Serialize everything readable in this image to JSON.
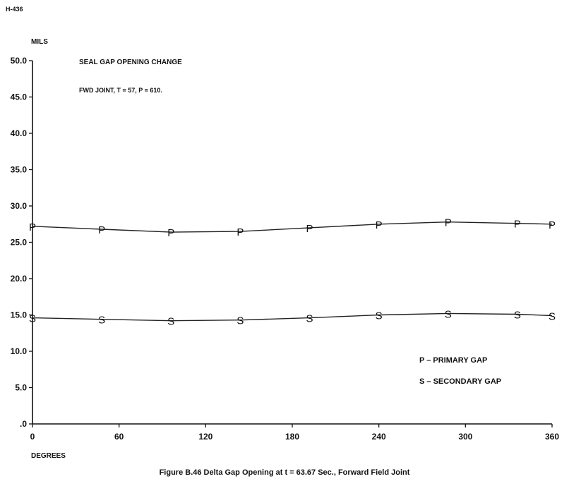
{
  "document_id": "H-436",
  "caption": "Figure B.46  Delta Gap Opening at t  =  63.67 Sec., Forward Field Joint",
  "chart_data": {
    "type": "line",
    "title": "SEAL GAP OPENING CHANGE",
    "subtitle": "FWD JOINT, T = 57, P = 610.",
    "ylabel": "MILS",
    "xlabel": "DEGREES",
    "xlim": [
      0,
      360
    ],
    "ylim": [
      0,
      50
    ],
    "x_ticks": [
      0,
      60,
      120,
      180,
      240,
      300,
      360
    ],
    "x_tick_labels": [
      "0",
      "60",
      "120",
      "180",
      "240",
      "300",
      "360"
    ],
    "y_ticks": [
      0,
      5,
      10,
      15,
      20,
      25,
      30,
      35,
      40,
      45,
      50
    ],
    "y_tick_labels": [
      ".0",
      "5.0",
      "10.0",
      "15.0",
      "20.0",
      "25.0",
      "30.0",
      "35.0",
      "40.0",
      "45.0",
      "50.0"
    ],
    "grid": false,
    "legend": [
      {
        "marker": "P",
        "label": "P – PRIMARY GAP"
      },
      {
        "marker": "S",
        "label": "S – SECONDARY GAP"
      }
    ],
    "series": [
      {
        "marker": "P",
        "x": [
          0,
          48,
          96,
          144,
          192,
          240,
          288,
          336,
          360
        ],
        "y": [
          27.2,
          26.8,
          26.4,
          26.5,
          27.0,
          27.5,
          27.8,
          27.6,
          27.5
        ]
      },
      {
        "marker": "S",
        "x": [
          0,
          48,
          96,
          144,
          192,
          240,
          288,
          336,
          360
        ],
        "y": [
          14.6,
          14.4,
          14.2,
          14.3,
          14.6,
          15.0,
          15.2,
          15.1,
          14.9
        ]
      }
    ]
  }
}
